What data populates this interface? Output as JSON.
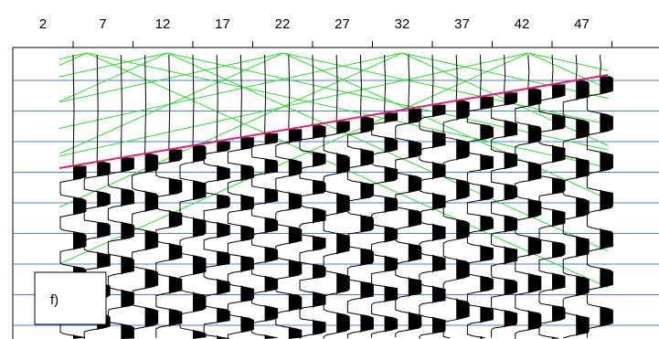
{
  "axis_labels": [
    2,
    7,
    12,
    17,
    22,
    27,
    32,
    37,
    42,
    47
  ],
  "panel_label": "f)"
}
